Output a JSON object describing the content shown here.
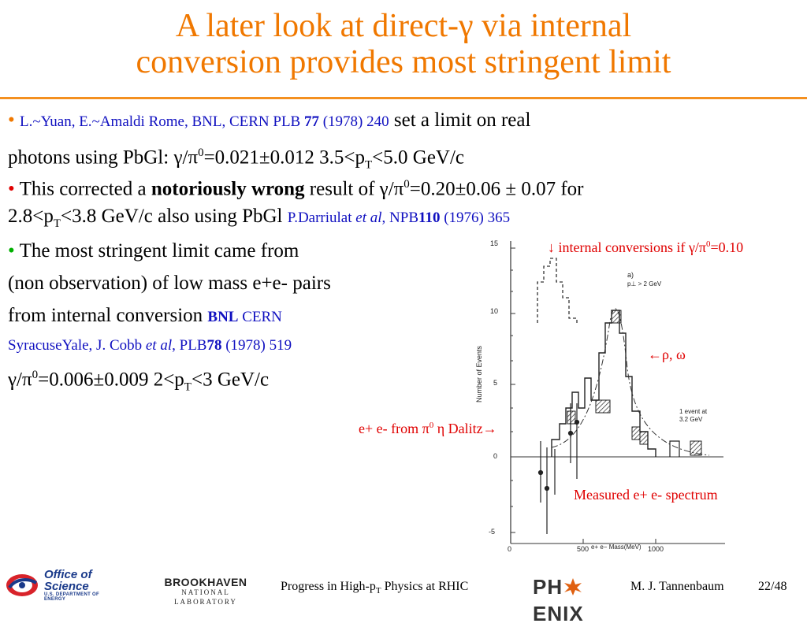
{
  "title": {
    "line1": "A later look at direct-γ via internal",
    "line2": "conversion provides most stringent limit"
  },
  "bullets": {
    "b1": {
      "ref": "L.~Yuan, E.~Amaldi Rome, BNL, CERN PLB ",
      "ref_vol": "77",
      "ref_tail": " (1978) 240",
      "text1": " set a limit on real",
      "text2": "photons using  PbGl: γ/π",
      "sup0": "0",
      "text3": "=0.021±0.012  3.5<p",
      "subT": "T",
      "text4": "<5.0 GeV/c"
    },
    "b2": {
      "text1": " This corrected a ",
      "bold": "notoriously wrong",
      "text2": " result of γ/π",
      "sup0": "0",
      "text3": "=0.20±0.06 ± 0.07 for",
      "text4": "2.8<p",
      "subT": "T",
      "text5": "<3.8 GeV/c also using PbGl ",
      "ref1": "P.Darriulat ",
      "ref_etal": "et al",
      "ref2": ", NPB",
      "ref_vol": "110",
      "ref3": " (1976) 365"
    },
    "b3": {
      "line1": " The most stringent limit came from",
      "line2": "(non observation) of low mass e+e- pairs",
      "line3": "from internal conversion ",
      "ref_bnl": "BNL",
      "ref_cern": " CERN",
      "line4a": "SyracuseYale, J. Cobb ",
      "line4_etal": "et al",
      "line4b": ", PLB",
      "line4_vol": "78",
      "line4c": " (1978) 519",
      "line5a": "γ/π",
      "sup0": "0",
      "line5b": "=0.006±0.009  2<p",
      "subT": "T",
      "line5c": "<3 GeV/c"
    }
  },
  "plot": {
    "panel_label": "a)",
    "panel_cond": "p⊥ > 2 GeV",
    "ylabel": "Number of Events",
    "xlabel": "e+ e− Mass(MeV)",
    "yticks": [
      "15",
      "10",
      "5",
      "0",
      "-5"
    ],
    "xticks": [
      "0",
      "500",
      "1000"
    ],
    "event_note_1": "1 event at",
    "event_note_2": "3.2 GeV"
  },
  "annotations": {
    "internal": "↓ internal conversions if γ/π",
    "internal_sup": "0",
    "internal_tail": "=0.10",
    "rho": "←ρ, ω",
    "dalitz_a": "e+ e- from π",
    "dalitz_sup": "0",
    "dalitz_b": " η Dalitz→",
    "measured": "Measured e+ e- spectrum"
  },
  "footer": {
    "office_line1": "Office of",
    "office_line2": "Science",
    "office_line3": "U.S. DEPARTMENT OF ENERGY",
    "bnl_line1": "BROOKHAVEN",
    "bnl_line2": "NATIONAL LABORATORY",
    "center_a": "Progress in High-p",
    "center_sub": "T",
    "center_b": " Physics at RHIC",
    "phenix_a": "PH",
    "phenix_b": "ENIX",
    "author": "M. J. Tannenbaum",
    "page": "22/48"
  },
  "colors": {
    "title": "#f07800",
    "reference": "#1010c0",
    "annotation": "#e00000"
  }
}
